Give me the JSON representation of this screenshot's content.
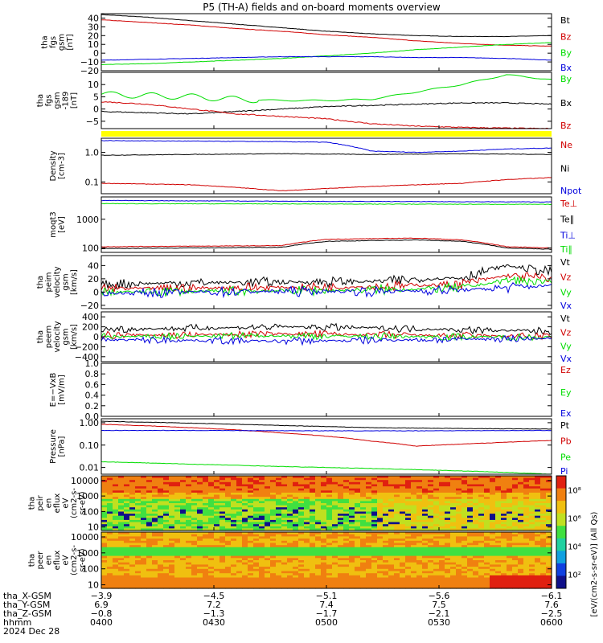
{
  "title": "P5 (TH-A) fields and on-board moments overview",
  "colors": {
    "black": "#000000",
    "red": "#d00000",
    "green": "#00dd00",
    "blue": "#0000dd",
    "yellow": "#ffff00"
  },
  "chart_data": [
    {
      "type": "line",
      "id": "p1",
      "ylabel_lines": [
        "tha",
        "fgs",
        "gsm",
        "[nT]"
      ],
      "ylim": [
        -20,
        45
      ],
      "yticks": [
        {
          "v": -20,
          "label": "−20"
        },
        {
          "v": -10,
          "label": "−10"
        },
        {
          "v": 0,
          "label": "0"
        },
        {
          "v": 10,
          "label": "10"
        },
        {
          "v": 20,
          "label": "20"
        },
        {
          "v": 30,
          "label": "30"
        },
        {
          "v": 40,
          "label": "40"
        }
      ],
      "series": [
        {
          "name": "Bt",
          "color": "black",
          "x": [
            0,
            0.1,
            0.2,
            0.3,
            0.4,
            0.5,
            0.6,
            0.7,
            0.8,
            0.9,
            1
          ],
          "y": [
            44,
            41,
            37,
            33,
            29,
            25,
            22,
            20,
            19,
            19,
            20
          ]
        },
        {
          "name": "Bz",
          "color": "red",
          "x": [
            0,
            0.1,
            0.2,
            0.3,
            0.4,
            0.5,
            0.6,
            0.7,
            0.8,
            0.9,
            1
          ],
          "y": [
            38,
            35,
            32,
            28,
            25,
            21,
            18,
            14,
            11,
            9,
            8
          ]
        },
        {
          "name": "By",
          "color": "green",
          "x": [
            0,
            0.1,
            0.2,
            0.3,
            0.4,
            0.5,
            0.6,
            0.7,
            0.8,
            0.9,
            1
          ],
          "y": [
            -13,
            -12,
            -10,
            -8,
            -6,
            -3,
            0,
            4,
            7,
            10,
            12
          ]
        },
        {
          "name": "Bx",
          "color": "blue",
          "x": [
            0,
            0.1,
            0.2,
            0.3,
            0.4,
            0.5,
            0.6,
            0.7,
            0.8,
            0.9,
            1
          ],
          "y": [
            -8,
            -7,
            -6,
            -5,
            -4,
            -4,
            -4,
            -5,
            -5,
            -6,
            -8
          ]
        }
      ]
    },
    {
      "type": "line",
      "id": "p2",
      "ylabel_lines": [
        "tha",
        "fgs",
        "gsm",
        "-189",
        "[nT]"
      ],
      "ylim": [
        -8,
        15
      ],
      "yticks": [
        {
          "v": -5,
          "label": "−5"
        },
        {
          "v": 0,
          "label": "0"
        },
        {
          "v": 5,
          "label": "5"
        },
        {
          "v": 10,
          "label": "10"
        }
      ],
      "series": [
        {
          "name": "By",
          "color": "green",
          "x": [
            0,
            0.1,
            0.2,
            0.3,
            0.4,
            0.5,
            0.6,
            0.7,
            0.8,
            0.9,
            1
          ],
          "y": [
            6,
            5.5,
            5,
            4,
            3.5,
            3.5,
            4,
            7,
            10,
            14,
            12
          ]
        },
        {
          "name": "Bx",
          "color": "black",
          "x": [
            0,
            0.1,
            0.2,
            0.3,
            0.4,
            0.5,
            0.6,
            0.7,
            0.8,
            0.9,
            1
          ],
          "y": [
            -1,
            -1.5,
            -2,
            -1,
            0,
            1,
            1.5,
            2,
            2.5,
            2.5,
            2
          ]
        },
        {
          "name": "Bz",
          "color": "red",
          "x": [
            0,
            0.1,
            0.2,
            0.3,
            0.4,
            0.5,
            0.6,
            0.7,
            0.8,
            0.9,
            1
          ],
          "y": [
            3,
            2,
            0,
            -2,
            -3,
            -4,
            -6,
            -7,
            -7.5,
            -7.8,
            -8
          ]
        }
      ]
    },
    {
      "type": "line",
      "id": "p3",
      "yscale": "log",
      "ylabel_lines": [
        "Density",
        "[cm-3]"
      ],
      "ylim": [
        0.04,
        3
      ],
      "yticks": [
        {
          "v": 0.1,
          "label": "0.1"
        },
        {
          "v": 1,
          "label": "1.0"
        }
      ],
      "series": [
        {
          "name": "Ne",
          "color": "red",
          "x": [
            0,
            0.2,
            0.4,
            0.5,
            0.6,
            0.7,
            0.8,
            0.9,
            1
          ],
          "y": [
            0.09,
            0.08,
            0.05,
            0.06,
            0.07,
            0.08,
            0.09,
            0.12,
            0.14
          ]
        },
        {
          "name": "Ni",
          "color": "black",
          "x": [
            0,
            0.2,
            0.4,
            0.6,
            0.8,
            1
          ],
          "y": [
            0.8,
            0.85,
            0.9,
            0.85,
            0.9,
            0.85
          ]
        },
        {
          "name": "Npot",
          "color": "blue",
          "x": [
            0,
            0.2,
            0.4,
            0.5,
            0.6,
            0.7,
            0.8,
            0.9,
            1
          ],
          "y": [
            2.5,
            2.4,
            2.3,
            2.2,
            1.1,
            1.0,
            1.1,
            1.3,
            1.4
          ]
        }
      ]
    },
    {
      "type": "line",
      "id": "p4",
      "yscale": "log",
      "ylabel_lines": [
        "moqt3",
        "[eV]"
      ],
      "ylim": [
        70,
        6000
      ],
      "yticks": [
        {
          "v": 100,
          "label": "100"
        },
        {
          "v": 1000,
          "label": "1000"
        }
      ],
      "series": [
        {
          "name": "Te⊥",
          "color": "red",
          "x": [
            0,
            0.2,
            0.4,
            0.5,
            0.6,
            0.7,
            0.8,
            0.9,
            1
          ],
          "y": [
            110,
            115,
            120,
            200,
            210,
            220,
            190,
            110,
            100
          ]
        },
        {
          "name": "Te∥",
          "color": "black",
          "x": [
            0,
            0.2,
            0.4,
            0.5,
            0.6,
            0.7,
            0.8,
            0.9,
            1
          ],
          "y": [
            95,
            100,
            105,
            170,
            180,
            190,
            170,
            100,
            90
          ]
        },
        {
          "name": "Ti⊥",
          "color": "blue",
          "x": [
            0,
            0.5,
            1
          ],
          "y": [
            4500,
            4200,
            4000
          ]
        },
        {
          "name": "Ti∥",
          "color": "green",
          "x": [
            0,
            0.5,
            1
          ],
          "y": [
            3500,
            3400,
            3300
          ]
        }
      ]
    },
    {
      "type": "line",
      "id": "p5",
      "ylabel_lines": [
        "tha",
        "peim",
        "velocity",
        "gsm",
        "[km/s]"
      ],
      "ylim": [
        -25,
        55
      ],
      "yticks": [
        {
          "v": -20,
          "label": "−20"
        },
        {
          "v": 0,
          "label": "0"
        },
        {
          "v": 20,
          "label": "20"
        },
        {
          "v": 40,
          "label": "40"
        }
      ],
      "series": [
        {
          "name": "Vt",
          "color": "black",
          "x": [
            0,
            0.2,
            0.4,
            0.6,
            0.8,
            0.9,
            1
          ],
          "y": [
            12,
            14,
            15,
            16,
            22,
            40,
            30
          ]
        },
        {
          "name": "Vz",
          "color": "red",
          "x": [
            0,
            0.2,
            0.4,
            0.6,
            0.8,
            0.9,
            1
          ],
          "y": [
            5,
            6,
            7,
            8,
            12,
            25,
            20
          ]
        },
        {
          "name": "Vy",
          "color": "green",
          "x": [
            0,
            0.2,
            0.4,
            0.6,
            0.8,
            0.9,
            1
          ],
          "y": [
            0,
            1,
            2,
            3,
            6,
            18,
            15
          ]
        },
        {
          "name": "Vx",
          "color": "blue",
          "x": [
            0,
            0.2,
            0.4,
            0.6,
            0.8,
            1
          ],
          "y": [
            -2,
            0,
            1,
            1,
            3,
            10
          ]
        }
      ]
    },
    {
      "type": "line",
      "id": "p6",
      "ylabel_lines": [
        "tha",
        "peem",
        "velocity",
        "gsm",
        "[km/s]"
      ],
      "ylim": [
        -500,
        500
      ],
      "yticks": [
        {
          "v": -400,
          "label": "−400"
        },
        {
          "v": -200,
          "label": "−200"
        },
        {
          "v": 0,
          "label": "0"
        },
        {
          "v": 200,
          "label": "200"
        },
        {
          "v": 400,
          "label": "400"
        }
      ],
      "series": [
        {
          "name": "Vt",
          "color": "black",
          "x": [
            0,
            0.2,
            0.4,
            0.6,
            0.8,
            1
          ],
          "y": [
            150,
            170,
            200,
            180,
            140,
            110
          ]
        },
        {
          "name": "Vz",
          "color": "red",
          "x": [
            0,
            0.2,
            0.4,
            0.6,
            0.8,
            1
          ],
          "y": [
            30,
            40,
            60,
            40,
            20,
            10
          ]
        },
        {
          "name": "Vy",
          "color": "green",
          "x": [
            0,
            0.2,
            0.4,
            0.6,
            0.8,
            1
          ],
          "y": [
            0,
            10,
            20,
            10,
            0,
            -10
          ]
        },
        {
          "name": "Vx",
          "color": "blue",
          "x": [
            0,
            0.2,
            0.4,
            0.6,
            0.8,
            1
          ],
          "y": [
            -60,
            -70,
            -90,
            -70,
            -50,
            -30
          ]
        }
      ]
    },
    {
      "type": "line",
      "id": "p7",
      "ylabel_lines": [
        "E=−VxB",
        "[mV/m]"
      ],
      "ylim": [
        0,
        1
      ],
      "yticks": [
        {
          "v": 0,
          "label": "0.0"
        },
        {
          "v": 0.2,
          "label": "0.2"
        },
        {
          "v": 0.4,
          "label": "0.4"
        },
        {
          "v": 0.6,
          "label": "0.6"
        },
        {
          "v": 0.8,
          "label": "0.8"
        },
        {
          "v": 1,
          "label": "1.0"
        }
      ],
      "series": [
        {
          "name": "Ez",
          "color": "red",
          "x": [],
          "y": []
        },
        {
          "name": "Ey",
          "color": "green",
          "x": [],
          "y": []
        },
        {
          "name": "Ex",
          "color": "blue",
          "x": [],
          "y": []
        }
      ]
    },
    {
      "type": "line",
      "id": "p8",
      "yscale": "log",
      "ylabel_lines": [
        "Pressure",
        "[nPa]"
      ],
      "ylim": [
        0.005,
        1.5
      ],
      "yticks": [
        {
          "v": 0.01,
          "label": "0.01"
        },
        {
          "v": 0.1,
          "label": "0.10"
        },
        {
          "v": 1,
          "label": "1.00"
        }
      ],
      "series": [
        {
          "name": "Pt",
          "color": "black",
          "x": [
            0,
            0.2,
            0.4,
            0.6,
            0.8,
            1
          ],
          "y": [
            1.15,
            0.95,
            0.75,
            0.6,
            0.55,
            0.52
          ]
        },
        {
          "name": "Pb",
          "color": "red",
          "x": [
            0,
            0.2,
            0.4,
            0.6,
            0.7,
            0.8,
            1
          ],
          "y": [
            0.85,
            0.6,
            0.35,
            0.15,
            0.09,
            0.11,
            0.16
          ]
        },
        {
          "name": "Pe",
          "color": "green",
          "x": [
            0,
            0.2,
            0.4,
            0.6,
            0.8,
            1
          ],
          "y": [
            0.018,
            0.014,
            0.011,
            0.009,
            0.007,
            0.005
          ]
        },
        {
          "name": "Pi",
          "color": "blue",
          "x": [
            0,
            0.2,
            0.4,
            0.6,
            0.8,
            1
          ],
          "y": [
            0.45,
            0.45,
            0.44,
            0.43,
            0.44,
            0.45
          ]
        }
      ]
    },
    {
      "type": "heatmap",
      "id": "p9",
      "yscale": "log",
      "ylabel_lines": [
        "tha",
        "peir",
        "en",
        "eflux",
        "eV",
        "(cm2-s-",
        "sr-eV)"
      ],
      "ylim": [
        6,
        20000
      ],
      "yticks": [
        {
          "v": 10,
          "label": "10"
        },
        {
          "v": 100,
          "label": "100"
        },
        {
          "v": 1000,
          "label": "1000"
        },
        {
          "v": 10000,
          "label": "10000"
        }
      ]
    },
    {
      "type": "heatmap",
      "id": "p10",
      "yscale": "log",
      "ylabel_lines": [
        "tha",
        "peer",
        "en",
        "eflux",
        "eV",
        "(cm2-s-",
        "sr-eV)"
      ],
      "ylim": [
        6,
        20000
      ],
      "yticks": [
        {
          "v": 10,
          "label": "10"
        },
        {
          "v": 100,
          "label": "100"
        },
        {
          "v": 1000,
          "label": "1000"
        },
        {
          "v": 10000,
          "label": "10000"
        }
      ]
    }
  ],
  "colorbar": {
    "ticks": [
      {
        "v": 2,
        "label": "10²"
      },
      {
        "v": 4,
        "label": "10⁴"
      },
      {
        "v": 6,
        "label": "10⁶"
      },
      {
        "v": 8,
        "label": "10⁸"
      }
    ],
    "label": "[eV/(cm2-s-sr-eV)] (All Qs)"
  },
  "xaxis": {
    "row_labels": [
      "tha_X-GSM",
      "tha_Y-GSM",
      "tha_Z-GSM",
      "hhmm",
      "2024 Dec 28"
    ],
    "ticks": [
      {
        "x": 0,
        "vals": [
          "−3.9",
          "6.9",
          "−0.8",
          "0400"
        ]
      },
      {
        "x": 0.25,
        "vals": [
          "−4.5",
          "7.2",
          "−1.3",
          "0430"
        ]
      },
      {
        "x": 0.5,
        "vals": [
          "−5.1",
          "7.4",
          "−1.7",
          "0500"
        ]
      },
      {
        "x": 0.75,
        "vals": [
          "−5.6",
          "7.5",
          "−2.1",
          "0530"
        ]
      },
      {
        "x": 1,
        "vals": [
          "−6.1",
          "7.6",
          "−2.5",
          "0600"
        ]
      }
    ]
  }
}
